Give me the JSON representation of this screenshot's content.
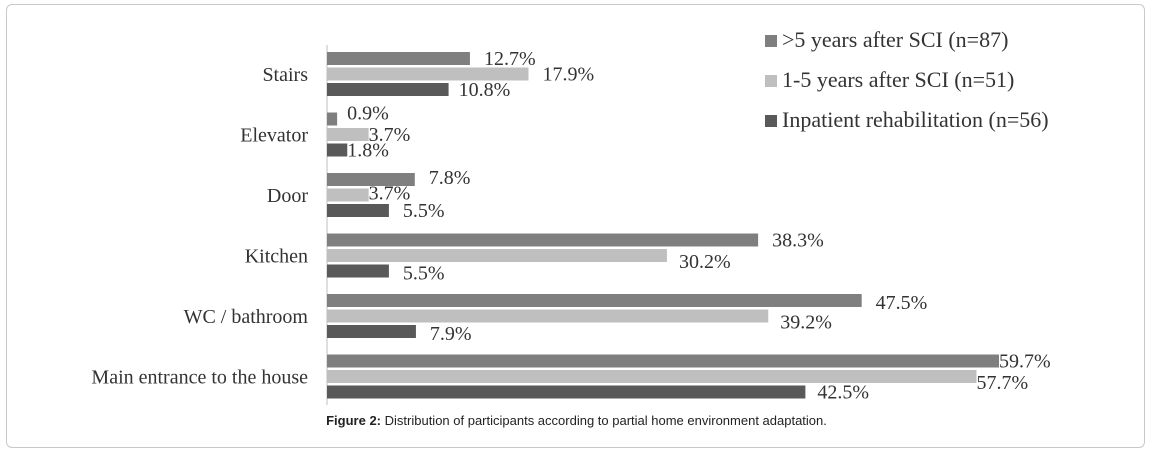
{
  "chart_data": {
    "type": "bar",
    "orientation": "horizontal",
    "categories": [
      "Stairs",
      "Elevator",
      "Door",
      "Kitchen",
      "WC / bathroom",
      "Main entrance to the house"
    ],
    "series": [
      {
        "name": ">5 years after SCI (n=87)",
        "color": "#7f7f7f",
        "values": [
          12.7,
          0.9,
          7.8,
          38.3,
          47.5,
          59.7
        ],
        "labels": [
          "12.7%",
          "0.9%",
          "7.8%",
          "38.3%",
          "47.5%",
          "59.7%"
        ]
      },
      {
        "name": "1-5 years after SCI (n=51)",
        "color": "#bfbfbf",
        "values": [
          17.9,
          3.7,
          3.7,
          30.2,
          39.2,
          57.7
        ],
        "labels": [
          "17.9%",
          "3.7%",
          "3.7%",
          "30.2%",
          "39.2%",
          "57.7%"
        ]
      },
      {
        "name": "Inpatient rehabilitation (n=56)",
        "color": "#595959",
        "values": [
          10.8,
          1.8,
          5.5,
          5.5,
          7.9,
          42.5
        ],
        "labels": [
          "10.8%",
          "1.8%",
          "5.5%",
          "5.5%",
          "7.9%",
          "42.5%"
        ]
      }
    ],
    "xlim": [
      0,
      62
    ],
    "legend_position": "top-right",
    "grid": false
  },
  "caption": {
    "label": "Figure 2:",
    "text": " Distribution of participants according to partial home environment adaptation."
  }
}
